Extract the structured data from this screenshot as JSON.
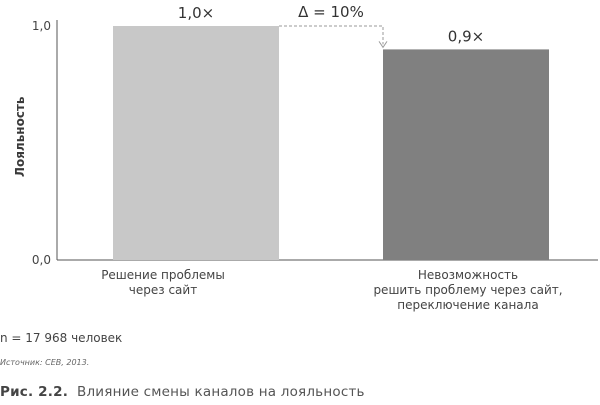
{
  "chart_data": {
    "type": "bar",
    "categories": [
      "Решение проблемы\nчерез сайт",
      "Невозможность\nрешить проблему через сайт,\nпереключение канала"
    ],
    "values": [
      1.0,
      0.9
    ],
    "value_labels": [
      "1,0×",
      "0,9×"
    ],
    "bar_colors": [
      "#c8c8c8",
      "#808080"
    ],
    "ylabel": "Лояльность",
    "ylim": [
      0,
      1.0
    ],
    "yticks": [
      0.0,
      1.0
    ],
    "ytick_labels": [
      "0,0",
      "1,0"
    ],
    "annotation": "Δ = 10%",
    "grid": false
  },
  "sample_note": "n = 17 968 человек",
  "source": "Источник: CEB, 2013.",
  "caption": {
    "number": "Рис. 2.2.",
    "text": "Влияние смены каналов на лояльность"
  }
}
